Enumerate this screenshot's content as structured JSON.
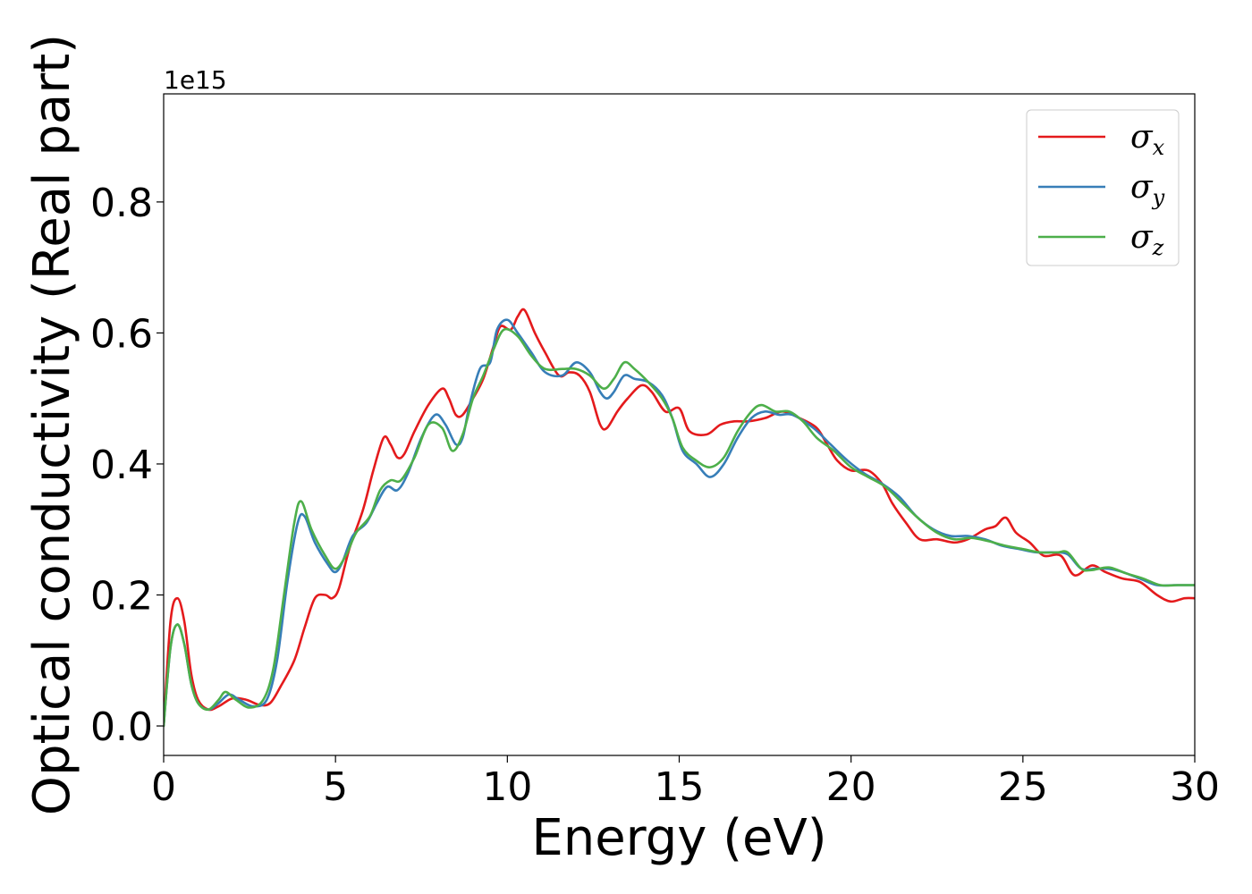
{
  "chart_data": {
    "type": "line",
    "title": "",
    "xlabel": "Energy (eV)",
    "ylabel": "Optical conductivity (Real part)",
    "y_offset_label": "1e15",
    "xlim": [
      0,
      30
    ],
    "ylim": [
      -0.045,
      0.965
    ],
    "x_ticks": [
      0,
      5,
      10,
      15,
      20,
      25,
      30
    ],
    "x_tick_labels": [
      "0",
      "5",
      "10",
      "15",
      "20",
      "25",
      "30"
    ],
    "y_ticks": [
      0.0,
      0.2,
      0.4,
      0.6,
      0.8
    ],
    "y_tick_labels": [
      "0.0",
      "0.2",
      "0.4",
      "0.6",
      "0.8"
    ],
    "grid": false,
    "legend_position": "top-right",
    "colors": {
      "sigma_x": "#e41a1c",
      "sigma_y": "#377eb8",
      "sigma_z": "#4daf4a"
    },
    "series": [
      {
        "name": "σx",
        "legend": {
          "base": "σ",
          "sub": "x"
        },
        "color": "#e41a1c",
        "points": [
          [
            0,
            0
          ],
          [
            0.2,
            0.16
          ],
          [
            0.4,
            0.195
          ],
          [
            0.6,
            0.16
          ],
          [
            0.8,
            0.08
          ],
          [
            1.0,
            0.04
          ],
          [
            1.3,
            0.025
          ],
          [
            1.6,
            0.03
          ],
          [
            2.0,
            0.042
          ],
          [
            2.4,
            0.04
          ],
          [
            2.8,
            0.032
          ],
          [
            3.1,
            0.035
          ],
          [
            3.4,
            0.06
          ],
          [
            3.8,
            0.1
          ],
          [
            4.1,
            0.15
          ],
          [
            4.4,
            0.195
          ],
          [
            4.7,
            0.2
          ],
          [
            4.9,
            0.195
          ],
          [
            5.1,
            0.21
          ],
          [
            5.4,
            0.27
          ],
          [
            5.8,
            0.33
          ],
          [
            6.1,
            0.39
          ],
          [
            6.4,
            0.44
          ],
          [
            6.6,
            0.43
          ],
          [
            6.8,
            0.41
          ],
          [
            7.0,
            0.415
          ],
          [
            7.3,
            0.45
          ],
          [
            7.7,
            0.49
          ],
          [
            8.1,
            0.515
          ],
          [
            8.3,
            0.5
          ],
          [
            8.5,
            0.475
          ],
          [
            8.7,
            0.475
          ],
          [
            9.0,
            0.5
          ],
          [
            9.3,
            0.53
          ],
          [
            9.6,
            0.58
          ],
          [
            9.8,
            0.61
          ],
          [
            10.1,
            0.605
          ],
          [
            10.3,
            0.625
          ],
          [
            10.5,
            0.635
          ],
          [
            10.8,
            0.6
          ],
          [
            11.1,
            0.57
          ],
          [
            11.5,
            0.535
          ],
          [
            11.8,
            0.54
          ],
          [
            12.1,
            0.535
          ],
          [
            12.4,
            0.51
          ],
          [
            12.7,
            0.46
          ],
          [
            12.9,
            0.455
          ],
          [
            13.2,
            0.48
          ],
          [
            13.5,
            0.5
          ],
          [
            13.9,
            0.52
          ],
          [
            14.2,
            0.51
          ],
          [
            14.6,
            0.48
          ],
          [
            15.0,
            0.485
          ],
          [
            15.3,
            0.45
          ],
          [
            15.8,
            0.445
          ],
          [
            16.2,
            0.46
          ],
          [
            16.6,
            0.465
          ],
          [
            17.0,
            0.465
          ],
          [
            17.5,
            0.47
          ],
          [
            18.0,
            0.48
          ],
          [
            18.5,
            0.47
          ],
          [
            19.0,
            0.455
          ],
          [
            19.3,
            0.43
          ],
          [
            19.6,
            0.405
          ],
          [
            20.0,
            0.39
          ],
          [
            20.5,
            0.39
          ],
          [
            20.9,
            0.37
          ],
          [
            21.2,
            0.34
          ],
          [
            21.6,
            0.31
          ],
          [
            22.0,
            0.285
          ],
          [
            22.5,
            0.285
          ],
          [
            23.0,
            0.28
          ],
          [
            23.4,
            0.285
          ],
          [
            23.9,
            0.3
          ],
          [
            24.2,
            0.305
          ],
          [
            24.5,
            0.318
          ],
          [
            24.8,
            0.295
          ],
          [
            25.2,
            0.28
          ],
          [
            25.6,
            0.26
          ],
          [
            26.1,
            0.26
          ],
          [
            26.5,
            0.23
          ],
          [
            27.0,
            0.245
          ],
          [
            27.4,
            0.235
          ],
          [
            27.9,
            0.225
          ],
          [
            28.4,
            0.22
          ],
          [
            28.9,
            0.2
          ],
          [
            29.3,
            0.19
          ],
          [
            29.7,
            0.195
          ],
          [
            30.0,
            0.195
          ]
        ]
      },
      {
        "name": "σy",
        "legend": {
          "base": "σ",
          "sub": "y"
        },
        "color": "#377eb8",
        "points": [
          [
            0,
            0
          ],
          [
            0.2,
            0.12
          ],
          [
            0.4,
            0.155
          ],
          [
            0.6,
            0.125
          ],
          [
            0.8,
            0.065
          ],
          [
            1.0,
            0.035
          ],
          [
            1.3,
            0.025
          ],
          [
            1.6,
            0.035
          ],
          [
            1.9,
            0.048
          ],
          [
            2.2,
            0.04
          ],
          [
            2.6,
            0.03
          ],
          [
            3.0,
            0.04
          ],
          [
            3.3,
            0.1
          ],
          [
            3.6,
            0.22
          ],
          [
            3.9,
            0.31
          ],
          [
            4.1,
            0.32
          ],
          [
            4.4,
            0.28
          ],
          [
            4.8,
            0.245
          ],
          [
            5.0,
            0.235
          ],
          [
            5.2,
            0.25
          ],
          [
            5.5,
            0.29
          ],
          [
            5.9,
            0.31
          ],
          [
            6.2,
            0.34
          ],
          [
            6.5,
            0.365
          ],
          [
            6.8,
            0.36
          ],
          [
            7.1,
            0.385
          ],
          [
            7.5,
            0.44
          ],
          [
            7.9,
            0.475
          ],
          [
            8.2,
            0.46
          ],
          [
            8.5,
            0.43
          ],
          [
            8.7,
            0.44
          ],
          [
            8.9,
            0.49
          ],
          [
            9.2,
            0.545
          ],
          [
            9.5,
            0.555
          ],
          [
            9.7,
            0.605
          ],
          [
            10.0,
            0.62
          ],
          [
            10.3,
            0.6
          ],
          [
            10.7,
            0.57
          ],
          [
            11.1,
            0.54
          ],
          [
            11.6,
            0.535
          ],
          [
            12.0,
            0.555
          ],
          [
            12.4,
            0.54
          ],
          [
            12.7,
            0.51
          ],
          [
            12.9,
            0.5
          ],
          [
            13.1,
            0.51
          ],
          [
            13.4,
            0.535
          ],
          [
            13.7,
            0.53
          ],
          [
            14.1,
            0.525
          ],
          [
            14.5,
            0.505
          ],
          [
            14.8,
            0.47
          ],
          [
            15.1,
            0.42
          ],
          [
            15.5,
            0.4
          ],
          [
            15.9,
            0.38
          ],
          [
            16.3,
            0.4
          ],
          [
            16.7,
            0.44
          ],
          [
            17.1,
            0.47
          ],
          [
            17.5,
            0.48
          ],
          [
            17.9,
            0.475
          ],
          [
            18.3,
            0.475
          ],
          [
            18.9,
            0.455
          ],
          [
            19.4,
            0.43
          ],
          [
            19.9,
            0.405
          ],
          [
            20.4,
            0.385
          ],
          [
            20.9,
            0.37
          ],
          [
            21.4,
            0.35
          ],
          [
            21.9,
            0.32
          ],
          [
            22.4,
            0.3
          ],
          [
            22.9,
            0.29
          ],
          [
            23.4,
            0.29
          ],
          [
            23.9,
            0.285
          ],
          [
            24.4,
            0.275
          ],
          [
            24.9,
            0.27
          ],
          [
            25.4,
            0.265
          ],
          [
            25.9,
            0.265
          ],
          [
            26.3,
            0.262
          ],
          [
            26.7,
            0.24
          ],
          [
            27.1,
            0.24
          ],
          [
            27.5,
            0.24
          ],
          [
            27.9,
            0.235
          ],
          [
            28.4,
            0.225
          ],
          [
            28.9,
            0.215
          ],
          [
            29.4,
            0.215
          ],
          [
            30.0,
            0.215
          ]
        ]
      },
      {
        "name": "σz",
        "legend": {
          "base": "σ",
          "sub": "z"
        },
        "color": "#4daf4a",
        "points": [
          [
            0,
            0
          ],
          [
            0.2,
            0.12
          ],
          [
            0.4,
            0.155
          ],
          [
            0.6,
            0.125
          ],
          [
            0.8,
            0.065
          ],
          [
            1.0,
            0.035
          ],
          [
            1.3,
            0.025
          ],
          [
            1.6,
            0.04
          ],
          [
            1.8,
            0.052
          ],
          [
            2.1,
            0.04
          ],
          [
            2.5,
            0.028
          ],
          [
            2.9,
            0.04
          ],
          [
            3.2,
            0.09
          ],
          [
            3.5,
            0.2
          ],
          [
            3.8,
            0.31
          ],
          [
            4.0,
            0.343
          ],
          [
            4.3,
            0.3
          ],
          [
            4.7,
            0.26
          ],
          [
            5.0,
            0.24
          ],
          [
            5.3,
            0.26
          ],
          [
            5.6,
            0.295
          ],
          [
            6.0,
            0.32
          ],
          [
            6.3,
            0.36
          ],
          [
            6.6,
            0.375
          ],
          [
            6.9,
            0.375
          ],
          [
            7.3,
            0.41
          ],
          [
            7.7,
            0.46
          ],
          [
            8.1,
            0.455
          ],
          [
            8.4,
            0.42
          ],
          [
            8.7,
            0.445
          ],
          [
            9.0,
            0.5
          ],
          [
            9.3,
            0.535
          ],
          [
            9.6,
            0.575
          ],
          [
            9.9,
            0.605
          ],
          [
            10.3,
            0.595
          ],
          [
            10.7,
            0.565
          ],
          [
            11.1,
            0.545
          ],
          [
            11.6,
            0.545
          ],
          [
            12.0,
            0.545
          ],
          [
            12.4,
            0.535
          ],
          [
            12.8,
            0.515
          ],
          [
            13.1,
            0.53
          ],
          [
            13.4,
            0.555
          ],
          [
            13.7,
            0.545
          ],
          [
            14.1,
            0.525
          ],
          [
            14.5,
            0.5
          ],
          [
            14.8,
            0.47
          ],
          [
            15.1,
            0.425
          ],
          [
            15.5,
            0.405
          ],
          [
            15.9,
            0.395
          ],
          [
            16.3,
            0.41
          ],
          [
            16.7,
            0.45
          ],
          [
            17.1,
            0.48
          ],
          [
            17.4,
            0.49
          ],
          [
            17.8,
            0.48
          ],
          [
            18.2,
            0.48
          ],
          [
            18.6,
            0.465
          ],
          [
            19.0,
            0.44
          ],
          [
            19.5,
            0.42
          ],
          [
            20.0,
            0.395
          ],
          [
            20.5,
            0.38
          ],
          [
            21.0,
            0.365
          ],
          [
            21.5,
            0.34
          ],
          [
            22.0,
            0.315
          ],
          [
            22.5,
            0.295
          ],
          [
            23.0,
            0.285
          ],
          [
            23.5,
            0.287
          ],
          [
            24.0,
            0.282
          ],
          [
            24.5,
            0.275
          ],
          [
            25.0,
            0.27
          ],
          [
            25.5,
            0.265
          ],
          [
            26.0,
            0.265
          ],
          [
            26.3,
            0.265
          ],
          [
            26.7,
            0.24
          ],
          [
            27.0,
            0.238
          ],
          [
            27.5,
            0.242
          ],
          [
            28.0,
            0.233
          ],
          [
            28.5,
            0.225
          ],
          [
            29.0,
            0.215
          ],
          [
            29.5,
            0.215
          ],
          [
            30.0,
            0.215
          ]
        ]
      }
    ]
  }
}
